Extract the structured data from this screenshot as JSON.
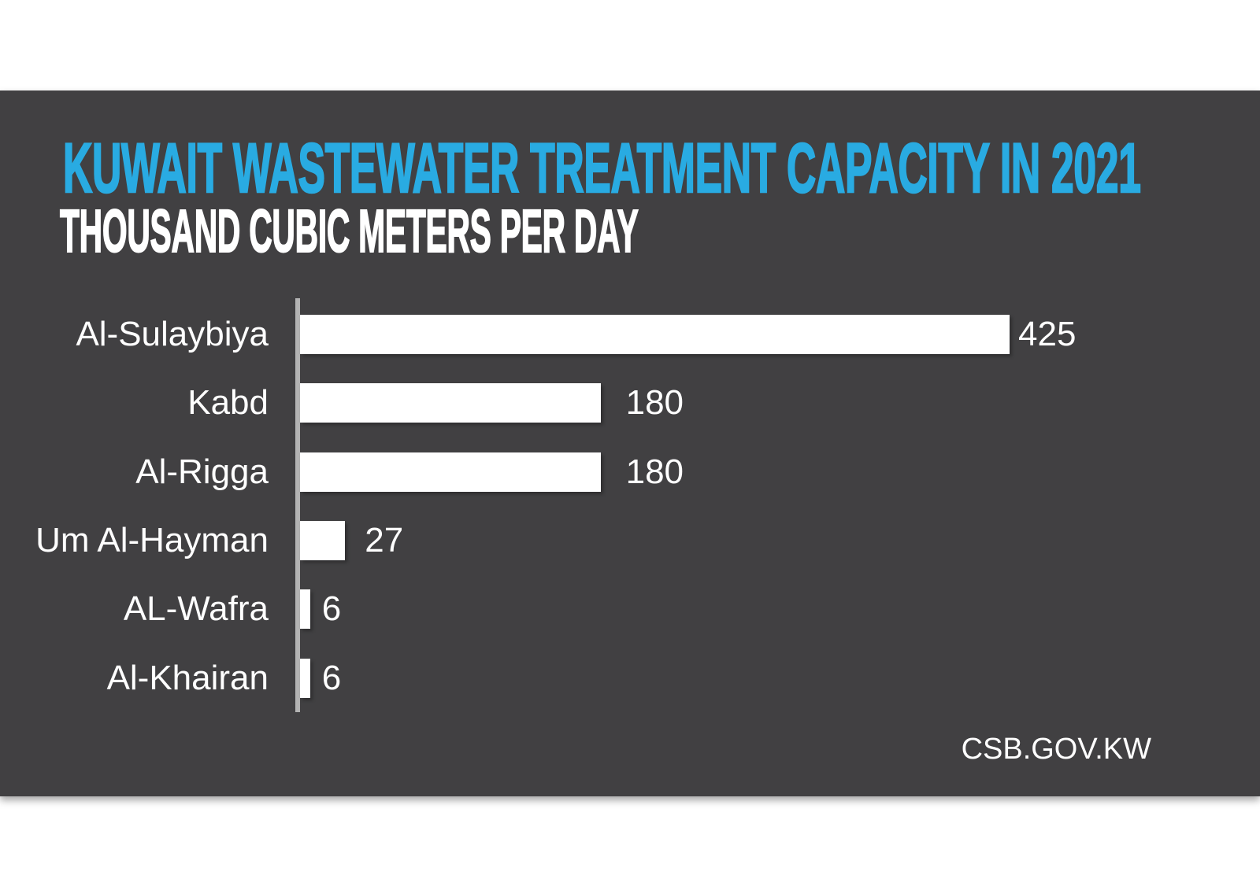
{
  "colors": {
    "page_bg": "#ffffff",
    "panel_bg": "#414042",
    "accent_blue": "#29abe2",
    "text_white": "#ffffff",
    "bar_fill": "#ffffff",
    "axis_line": "#b3b3b3"
  },
  "chart_data": {
    "type": "bar",
    "orientation": "horizontal",
    "title": "KUWAIT WASTEWATER TREATMENT CAPACITY IN 2021",
    "subtitle": "THOUSAND CUBIC METERS PER DAY",
    "unit": "thousand cubic meters per day",
    "categories": [
      "Al-Sulaybiya",
      "Kabd",
      "Al-Rigga",
      "Um Al-Hayman",
      "AL-Wafra",
      "Al-Khairan"
    ],
    "values": [
      425,
      180,
      180,
      27,
      6,
      6
    ],
    "value_labels": [
      "425",
      "180",
      "180",
      "27",
      "6",
      "6"
    ],
    "xlim": [
      0,
      425
    ],
    "grid": false,
    "legend": false,
    "data_labels": "outside-end",
    "source": "CSB.GOV.KW"
  }
}
